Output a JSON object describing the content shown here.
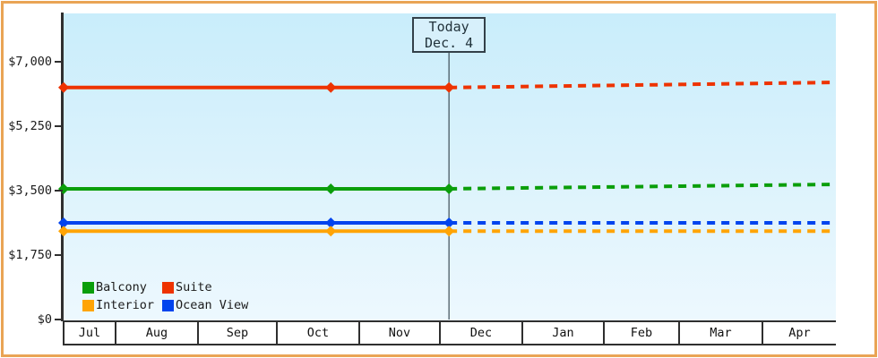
{
  "frame": {
    "border_color": "#e9a455"
  },
  "chart_data": {
    "type": "line",
    "title": "",
    "description": "Cruise cabin price history (solid) and forecast (dashed) by cabin category",
    "y_axis": {
      "ticks": [
        {
          "label": "$0",
          "value": 0
        },
        {
          "label": "$1,750",
          "value": 1750
        },
        {
          "label": "$3,500",
          "value": 3500
        },
        {
          "label": "$5,250",
          "value": 5250
        },
        {
          "label": "$7,000",
          "value": 7000
        }
      ],
      "ylim": [
        0,
        8300
      ],
      "grid": false
    },
    "x_axis": {
      "months": [
        "Jul",
        "Aug",
        "Sep",
        "Oct",
        "Nov",
        "Dec",
        "Jan",
        "Feb",
        "Mar",
        "Apr"
      ]
    },
    "today_marker": {
      "line1": "Today",
      "line2": "Dec. 4",
      "x_fraction": 0.499,
      "box_fill": "#d7f0fb",
      "line_color": "#3c4c56"
    },
    "series": [
      {
        "name": "Suite",
        "color": "#ee3300",
        "history_x_fractions": [
          0,
          0.346,
          0.499
        ],
        "history_values": [
          6300,
          6300,
          6300
        ],
        "forecast_x_fractions": [
          0.499,
          1.0
        ],
        "forecast_values": [
          6300,
          6440
        ]
      },
      {
        "name": "Balcony",
        "color": "#0a9e0a",
        "history_x_fractions": [
          0,
          0.346,
          0.499
        ],
        "history_values": [
          3550,
          3550,
          3550
        ],
        "forecast_x_fractions": [
          0.499,
          1.0
        ],
        "forecast_values": [
          3550,
          3670
        ]
      },
      {
        "name": "Ocean View",
        "color": "#0044ee",
        "history_x_fractions": [
          0,
          0.346,
          0.499
        ],
        "history_values": [
          2625,
          2625,
          2625
        ],
        "forecast_x_fractions": [
          0.499,
          1.0
        ],
        "forecast_values": [
          2625,
          2625
        ]
      },
      {
        "name": "Interior",
        "color": "#ffa405",
        "history_x_fractions": [
          0,
          0.346,
          0.499
        ],
        "history_values": [
          2400,
          2400,
          2400
        ],
        "forecast_x_fractions": [
          0.499,
          1.0
        ],
        "forecast_values": [
          2400,
          2400
        ]
      }
    ],
    "legend": {
      "position": "inside-bottom-left",
      "items": [
        {
          "label": "Balcony",
          "color": "#0a9e0a"
        },
        {
          "label": "Suite",
          "color": "#ee3300"
        },
        {
          "label": "Interior",
          "color": "#ffa405"
        },
        {
          "label": "Ocean View",
          "color": "#0044ee"
        }
      ]
    }
  }
}
